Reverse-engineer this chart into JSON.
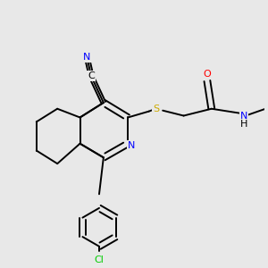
{
  "bg_color": "#e8e8e8",
  "bond_color": "#000000",
  "atom_colors": {
    "N": "#0000ff",
    "O": "#ff0000",
    "S": "#ccaa00",
    "Cl": "#00cc00"
  },
  "bond_width": 1.4,
  "figsize": [
    3.0,
    3.0
  ],
  "dpi": 100
}
